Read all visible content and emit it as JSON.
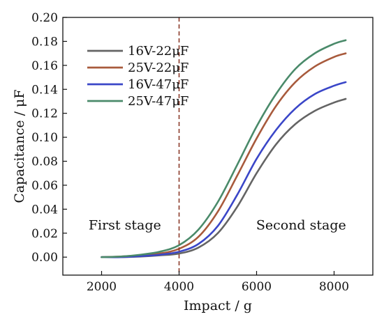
{
  "chart_data": {
    "type": "line",
    "title": "",
    "xlabel": "Impact / g",
    "ylabel": "Capacitance / μF",
    "xlim": [
      1000,
      9000
    ],
    "ylim": [
      -0.015,
      0.2
    ],
    "xticks": [
      2000,
      4000,
      6000,
      8000
    ],
    "xtick_labels": [
      "2000",
      "4000",
      "6000",
      "8000"
    ],
    "yticks": [
      0.0,
      0.02,
      0.04,
      0.06,
      0.08,
      0.1,
      0.12,
      0.14,
      0.16,
      0.18,
      0.2
    ],
    "ytick_labels": [
      "0.00",
      "0.02",
      "0.04",
      "0.06",
      "0.08",
      "0.10",
      "0.12",
      "0.14",
      "0.16",
      "0.18",
      "0.20"
    ],
    "grid": false,
    "legend_position": "top-left",
    "x": [
      2000,
      2500,
      3000,
      3500,
      4000,
      4500,
      5000,
      5500,
      6000,
      6500,
      7000,
      7500,
      8000,
      8300
    ],
    "series": [
      {
        "name": "16V-22μF",
        "color": "#646464",
        "values": [
          0.0,
          0.0,
          0.0005,
          0.0015,
          0.003,
          0.008,
          0.02,
          0.042,
          0.07,
          0.094,
          0.111,
          0.122,
          0.129,
          0.132
        ]
      },
      {
        "name": "25V-22μF",
        "color": "#a85a3c",
        "values": [
          0.0,
          0.0005,
          0.0015,
          0.003,
          0.007,
          0.017,
          0.038,
          0.068,
          0.099,
          0.126,
          0.146,
          0.159,
          0.167,
          0.17
        ]
      },
      {
        "name": "16V-47μF",
        "color": "#3a46c8",
        "values": [
          0.0,
          0.0,
          0.0008,
          0.002,
          0.0045,
          0.011,
          0.026,
          0.052,
          0.082,
          0.106,
          0.124,
          0.136,
          0.143,
          0.146
        ]
      },
      {
        "name": "25V-47μF",
        "color": "#4a8a6a",
        "values": [
          0.0,
          0.0005,
          0.002,
          0.0045,
          0.01,
          0.023,
          0.046,
          0.077,
          0.109,
          0.136,
          0.157,
          0.17,
          0.178,
          0.181
        ]
      }
    ],
    "reference_line": {
      "x": 4000,
      "color": "#8b3a2a",
      "style": "dashed"
    },
    "annotations": [
      {
        "text": "First stage",
        "x": 2600,
        "y": 0.027
      },
      {
        "text": "Second stage",
        "x": 7150,
        "y": 0.027
      }
    ]
  }
}
